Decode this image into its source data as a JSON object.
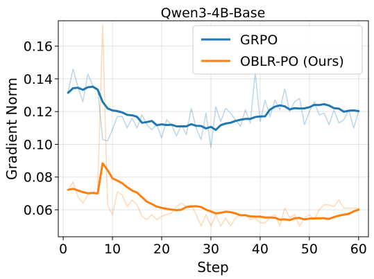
{
  "chart_data": {
    "type": "line",
    "title": "Qwen3-4B-Base",
    "xlabel": "Step",
    "ylabel": "Gradient Norm",
    "xlim": [
      -1,
      62
    ],
    "ylim": [
      0.0435,
      0.1755
    ],
    "xticks": [
      0,
      10,
      20,
      30,
      40,
      50,
      60
    ],
    "yticks": [
      0.06,
      0.08,
      0.1,
      0.12,
      0.14,
      0.16
    ],
    "ytick_labels": [
      "0.06",
      "0.08",
      "0.10",
      "0.12",
      "0.14",
      "0.16"
    ],
    "grid": true,
    "legend_position": "top-right",
    "series": [
      {
        "name": "GRPO",
        "color": "#1f77b4",
        "x": [
          1,
          2,
          3,
          4,
          5,
          6,
          7,
          8,
          9,
          10,
          11,
          12,
          13,
          14,
          15,
          16,
          17,
          18,
          19,
          20,
          21,
          22,
          23,
          24,
          25,
          26,
          27,
          28,
          29,
          30,
          31,
          32,
          33,
          34,
          35,
          36,
          37,
          38,
          39,
          40,
          41,
          42,
          43,
          44,
          45,
          46,
          47,
          48,
          49,
          50,
          51,
          52,
          53,
          54,
          55,
          56,
          57,
          58,
          59,
          60
        ],
        "raw": [
          0.132,
          0.146,
          0.135,
          0.126,
          0.143,
          0.136,
          0.134,
          0.103,
          0.102,
          0.109,
          0.117,
          0.117,
          0.11,
          0.116,
          0.11,
          0.118,
          0.112,
          0.109,
          0.112,
          0.104,
          0.115,
          0.112,
          0.105,
          0.112,
          0.106,
          0.122,
          0.11,
          0.103,
          0.119,
          0.098,
          0.123,
          0.114,
          0.122,
          0.119,
          0.115,
          0.111,
          0.121,
          0.113,
          0.144,
          0.114,
          0.127,
          0.117,
          0.127,
          0.121,
          0.134,
          0.12,
          0.126,
          0.128,
          0.112,
          0.12,
          0.126,
          0.118,
          0.119,
          0.112,
          0.121,
          0.113,
          0.115,
          0.121,
          0.11,
          0.12
        ],
        "smoothed": [
          0.1315,
          0.1343,
          0.1346,
          0.1333,
          0.1349,
          0.1352,
          0.1334,
          0.126,
          0.122,
          0.1207,
          0.1203,
          0.1195,
          0.118,
          0.1177,
          0.1168,
          0.1132,
          0.1136,
          0.1143,
          0.1117,
          0.1122,
          0.1118,
          0.112,
          0.111,
          0.111,
          0.111,
          0.1123,
          0.1113,
          0.1112,
          0.1097,
          0.1107,
          0.1088,
          0.1117,
          0.1127,
          0.1132,
          0.1143,
          0.115,
          0.1155,
          0.1155,
          0.1167,
          0.117,
          0.1171,
          0.1212,
          0.123,
          0.1238,
          0.1232,
          0.1213,
          0.1221,
          0.1219,
          0.122,
          0.1227,
          0.1241,
          0.124,
          0.1245,
          0.1237,
          0.1221,
          0.1218,
          0.1199,
          0.1205,
          0.1207,
          0.1203
        ]
      },
      {
        "name": "OBLR-PO (Ours)",
        "color": "#ff7f0e",
        "x": [
          1,
          2,
          3,
          4,
          5,
          6,
          7,
          8,
          9,
          10,
          11,
          12,
          13,
          14,
          15,
          16,
          17,
          18,
          19,
          20,
          21,
          22,
          23,
          24,
          25,
          26,
          27,
          28,
          29,
          30,
          31,
          32,
          33,
          34,
          35,
          36,
          37,
          38,
          39,
          40,
          41,
          42,
          43,
          44,
          45,
          46,
          47,
          48,
          49,
          50,
          51,
          52,
          53,
          54,
          55,
          56,
          57,
          58,
          59,
          60
        ],
        "raw": [
          0.072,
          0.077,
          0.068,
          0.064,
          0.069,
          0.071,
          0.07,
          0.173,
          0.063,
          0.057,
          0.071,
          0.069,
          0.062,
          0.066,
          0.063,
          0.056,
          0.054,
          0.057,
          0.054,
          0.056,
          0.057,
          0.058,
          0.062,
          0.064,
          0.062,
          0.063,
          0.057,
          0.05,
          0.057,
          0.05,
          0.057,
          0.05,
          0.055,
          0.05,
          0.055,
          0.057,
          0.057,
          0.054,
          0.055,
          0.052,
          0.052,
          0.055,
          0.057,
          0.05,
          0.061,
          0.055,
          0.057,
          0.05,
          0.055,
          0.057,
          0.054,
          0.06,
          0.063,
          0.063,
          0.062,
          0.066,
          0.061,
          0.061,
          0.061,
          0.061
        ],
        "smoothed": [
          0.0722,
          0.0728,
          0.0718,
          0.0708,
          0.0701,
          0.0703,
          0.07,
          0.0884,
          0.0843,
          0.0792,
          0.0778,
          0.0762,
          0.0738,
          0.0718,
          0.0705,
          0.0677,
          0.065,
          0.0635,
          0.062,
          0.0612,
          0.0606,
          0.0601,
          0.0598,
          0.06,
          0.0617,
          0.062,
          0.0622,
          0.0617,
          0.0601,
          0.059,
          0.0578,
          0.0582,
          0.0588,
          0.0585,
          0.0578,
          0.0566,
          0.0567,
          0.056,
          0.0558,
          0.0558,
          0.0553,
          0.0553,
          0.0551,
          0.054,
          0.0541,
          0.0537,
          0.0548,
          0.055,
          0.0541,
          0.0546,
          0.0547,
          0.0549,
          0.0548,
          0.0544,
          0.0555,
          0.0564,
          0.057,
          0.0575,
          0.059,
          0.0601
        ]
      }
    ]
  }
}
